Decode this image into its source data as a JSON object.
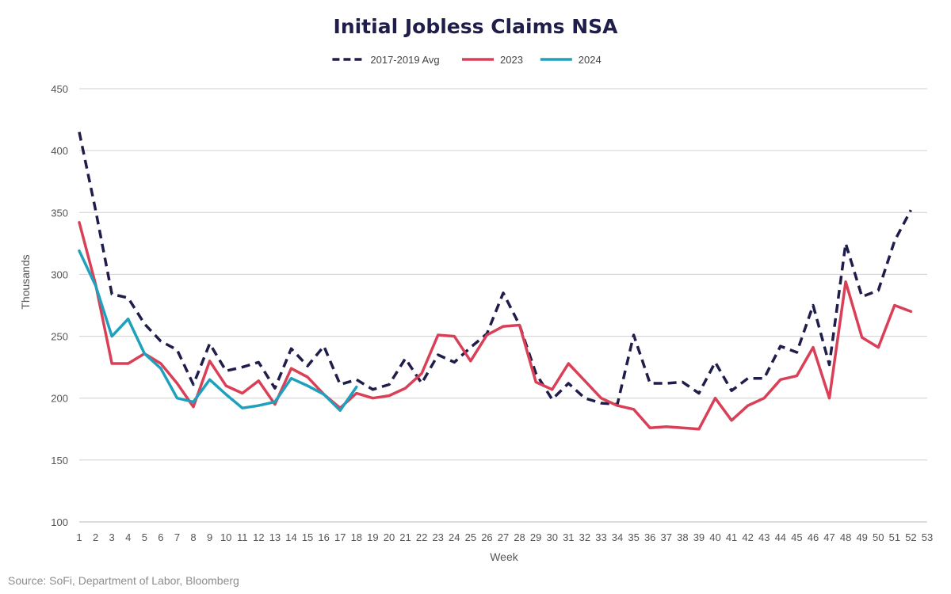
{
  "chart_data": {
    "type": "line",
    "title": "Initial Jobless Claims NSA",
    "xlabel": "Week",
    "ylabel": "Thousands",
    "source": "Source: SoFi, Department of Labor, Bloomberg",
    "xlim": [
      1,
      53
    ],
    "ylim": [
      100,
      450
    ],
    "yticks": [
      100,
      150,
      200,
      250,
      300,
      350,
      400,
      450
    ],
    "xticks": [
      1,
      2,
      3,
      4,
      5,
      6,
      7,
      8,
      9,
      10,
      11,
      12,
      13,
      14,
      15,
      16,
      17,
      18,
      19,
      20,
      21,
      22,
      23,
      24,
      25,
      26,
      27,
      28,
      29,
      30,
      31,
      32,
      33,
      34,
      35,
      36,
      37,
      38,
      39,
      40,
      41,
      42,
      43,
      44,
      45,
      46,
      47,
      48,
      49,
      50,
      51,
      52,
      53
    ],
    "grid": "horizontal",
    "legend_position": "top-center",
    "series": [
      {
        "name": "2017-2019 Avg",
        "color": "#1f1d4a",
        "style": "dashed",
        "x": [
          1,
          2,
          3,
          4,
          5,
          6,
          7,
          8,
          9,
          10,
          11,
          12,
          13,
          14,
          15,
          16,
          17,
          18,
          19,
          20,
          21,
          22,
          23,
          24,
          25,
          26,
          27,
          28,
          29,
          30,
          31,
          32,
          33,
          34,
          35,
          36,
          37,
          38,
          39,
          40,
          41,
          42,
          43,
          44,
          45,
          46,
          47,
          48,
          49,
          50,
          51,
          52
        ],
        "values": [
          415,
          352,
          284,
          281,
          260,
          246,
          239,
          211,
          244,
          222,
          225,
          229,
          208,
          240,
          226,
          242,
          211,
          215,
          207,
          211,
          232,
          212,
          235,
          229,
          241,
          252,
          285,
          259,
          220,
          199,
          212,
          200,
          196,
          195,
          251,
          212,
          212,
          213,
          204,
          229,
          206,
          216,
          216,
          242,
          237,
          275,
          227,
          325,
          282,
          287,
          327,
          352
        ]
      },
      {
        "name": "2023",
        "color": "#d94058",
        "style": "solid",
        "x": [
          1,
          2,
          3,
          4,
          5,
          6,
          7,
          8,
          9,
          10,
          11,
          12,
          13,
          14,
          15,
          16,
          17,
          18,
          19,
          20,
          21,
          22,
          23,
          24,
          25,
          26,
          27,
          28,
          29,
          30,
          31,
          32,
          33,
          34,
          35,
          36,
          37,
          38,
          39,
          40,
          41,
          42,
          43,
          44,
          45,
          46,
          47,
          48,
          49,
          50,
          51,
          52
        ],
        "values": [
          342,
          292,
          228,
          228,
          236,
          228,
          212,
          193,
          230,
          210,
          204,
          214,
          195,
          224,
          217,
          203,
          192,
          204,
          200,
          202,
          208,
          220,
          251,
          250,
          230,
          251,
          258,
          259,
          213,
          207,
          228,
          214,
          200,
          194,
          191,
          176,
          177,
          176,
          175,
          200,
          182,
          194,
          200,
          215,
          218,
          241,
          200,
          294,
          249,
          241,
          275,
          270
        ]
      },
      {
        "name": "2024",
        "color": "#1fa1bd",
        "style": "solid",
        "x": [
          1,
          2,
          3,
          4,
          5,
          6,
          7,
          8,
          9,
          10,
          11,
          12,
          13,
          14,
          15,
          16,
          17,
          18
        ],
        "values": [
          319,
          291,
          250,
          264,
          236,
          224,
          200,
          197,
          215,
          203,
          192,
          194,
          197,
          216,
          210,
          203,
          190,
          209
        ]
      }
    ]
  }
}
